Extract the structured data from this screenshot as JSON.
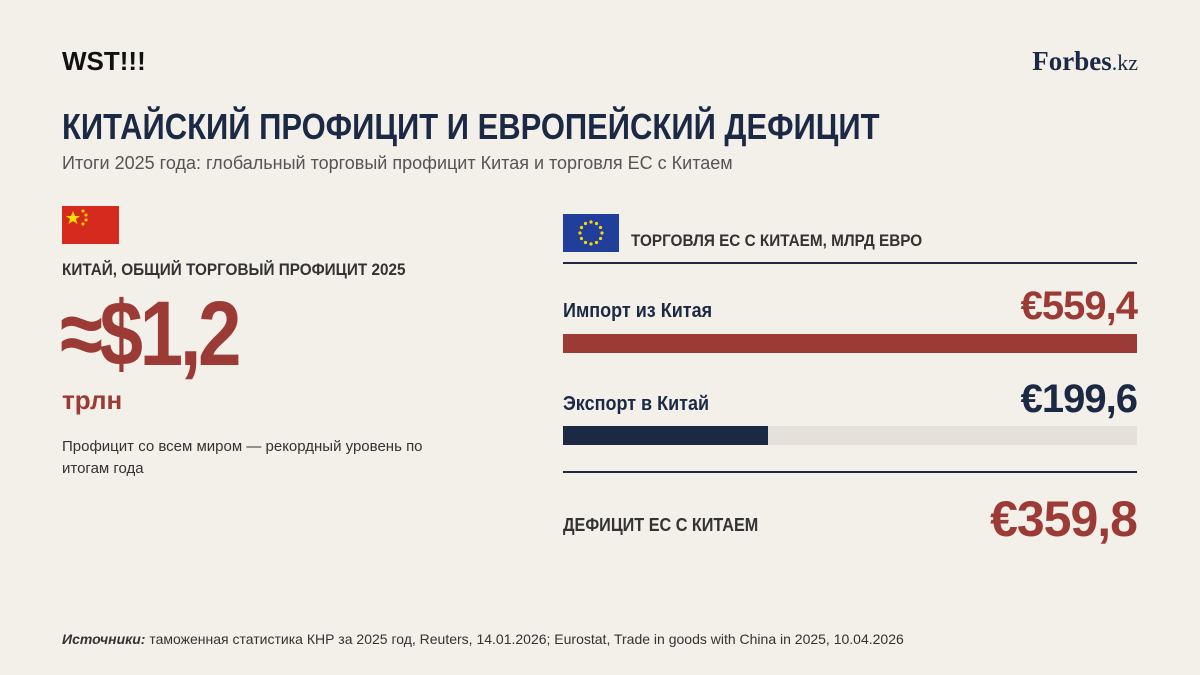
{
  "header": {
    "brand": "WST!!!",
    "logo": "Forbes",
    "logo_suffix": ".kz",
    "title": "КИТАЙСКИЙ ПРОФИЦИТ И ЕВРОПЕЙСКИЙ ДЕФИЦИТ",
    "subtitle": "Итоги 2025 года: глобальный торговый профицит Китая и торговля ЕС с Китаем"
  },
  "china": {
    "label": "КИТАЙ, ОБЩИЙ ТОРГОВЫЙ ПРОФИЦИТ 2025",
    "value": "≈$1,2",
    "unit": "трлн",
    "note": "Профицит со всем миром — рекордный уровень по итогам года"
  },
  "eu": {
    "title": "ТОРГОВЛЯ ЕС С КИТАЕМ, МЛРД ЕВРО",
    "bars": [
      {
        "label": "Импорт из Китая",
        "value": 559.4,
        "value_label": "€559,4",
        "color": "#9c3b35"
      },
      {
        "label": "Экспорт в Китай",
        "value": 199.6,
        "value_label": "€199,6",
        "color": "#1b2945"
      }
    ],
    "deficit_label": "ДЕФИЦИТ ЕС С КИТАЕМ",
    "deficit_value": "€359,8"
  },
  "footer": {
    "sources_label": "Источники:",
    "sources": "таможенная статистика КНР за 2025 год, Reuters, 14.01.2026; Eurostat, Trade in goods with China in 2025, 10.04.2026"
  }
}
